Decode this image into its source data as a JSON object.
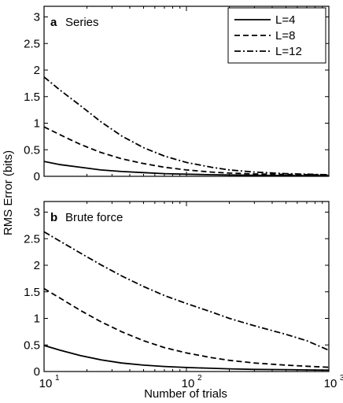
{
  "figure": {
    "ylabel": "RMS Error (bits)",
    "xlabel": "Number of trials"
  },
  "chart_data": [
    {
      "type": "line",
      "panel_letter": "a",
      "title": "Series",
      "xscale": "log",
      "xlim": [
        10,
        1000
      ],
      "ylim": [
        0,
        3.2
      ],
      "yticks": [
        "0",
        "0.5",
        "1",
        "1.5",
        "2",
        "2.5",
        "3"
      ],
      "xtick_labels": [],
      "legend": {
        "placement": "top-right",
        "entries": [
          "L=4",
          "L=8",
          "L=12"
        ]
      },
      "series": [
        {
          "name": "L=4",
          "style": "solid",
          "x": [
            10,
            13,
            18,
            25,
            35,
            50,
            70,
            100,
            150,
            200,
            300,
            500,
            700,
            1000
          ],
          "y": [
            0.28,
            0.22,
            0.17,
            0.12,
            0.09,
            0.07,
            0.05,
            0.04,
            0.03,
            0.025,
            0.02,
            0.015,
            0.012,
            0.01
          ]
        },
        {
          "name": "L=8",
          "style": "dash",
          "x": [
            10,
            13,
            18,
            25,
            35,
            50,
            70,
            100,
            150,
            200,
            300,
            500,
            700,
            1000
          ],
          "y": [
            0.93,
            0.78,
            0.6,
            0.45,
            0.33,
            0.24,
            0.17,
            0.12,
            0.08,
            0.06,
            0.045,
            0.035,
            0.03,
            0.025
          ]
        },
        {
          "name": "L=12",
          "style": "dashdot",
          "x": [
            10,
            13,
            18,
            25,
            35,
            50,
            70,
            100,
            150,
            200,
            300,
            500,
            700,
            1000
          ],
          "y": [
            1.87,
            1.62,
            1.33,
            1.03,
            0.76,
            0.54,
            0.38,
            0.26,
            0.17,
            0.12,
            0.08,
            0.05,
            0.04,
            0.03
          ]
        }
      ]
    },
    {
      "type": "line",
      "panel_letter": "b",
      "title": "Brute force",
      "xscale": "log",
      "xlim": [
        10,
        1000
      ],
      "ylim": [
        0,
        3.2
      ],
      "yticks": [
        "0",
        "0.5",
        "1",
        "1.5",
        "2",
        "2.5",
        "3"
      ],
      "xtick_labels": [
        {
          "base": "10",
          "exp": "1"
        },
        {
          "base": "10",
          "exp": "2"
        },
        {
          "base": "10",
          "exp": "3"
        }
      ],
      "series": [
        {
          "name": "L=4",
          "style": "solid",
          "x": [
            10,
            13,
            18,
            25,
            35,
            50,
            70,
            100,
            150,
            200,
            300,
            500,
            700,
            1000
          ],
          "y": [
            0.49,
            0.4,
            0.3,
            0.22,
            0.16,
            0.12,
            0.095,
            0.075,
            0.06,
            0.05,
            0.04,
            0.035,
            0.03,
            0.025
          ]
        },
        {
          "name": "L=8",
          "style": "dash",
          "x": [
            10,
            13,
            18,
            25,
            35,
            50,
            70,
            100,
            150,
            200,
            300,
            500,
            700,
            1000
          ],
          "y": [
            1.56,
            1.38,
            1.15,
            0.94,
            0.75,
            0.58,
            0.45,
            0.35,
            0.26,
            0.21,
            0.16,
            0.12,
            0.1,
            0.08
          ]
        },
        {
          "name": "L=12",
          "style": "dashdot",
          "x": [
            10,
            13,
            18,
            25,
            35,
            50,
            70,
            100,
            150,
            200,
            300,
            500,
            700,
            1000
          ],
          "y": [
            2.63,
            2.45,
            2.23,
            2.01,
            1.8,
            1.6,
            1.43,
            1.28,
            1.12,
            1.0,
            0.86,
            0.7,
            0.58,
            0.4
          ]
        }
      ]
    }
  ]
}
